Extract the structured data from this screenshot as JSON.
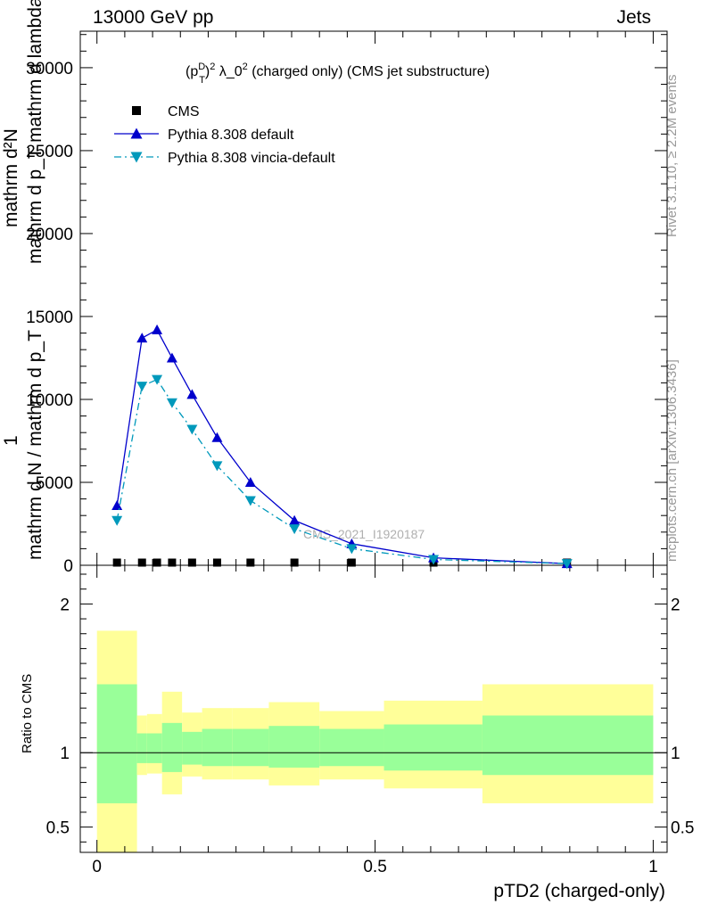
{
  "header": {
    "left": "13000 GeV pp",
    "right": "Jets"
  },
  "side_labels": {
    "rivet": "Rivet 3.1.10, ≥ 2.2M events",
    "site": "mcplots.cern.ch [arXiv:1306.3436]"
  },
  "y_axis_title": {
    "line1": "mathrm d²N",
    "line2": "mathrm d p_T mathrm d lambda",
    "frac_one": "1",
    "line3": "mathrm d N / mathrm d p_T"
  },
  "ratio_ylabel": "Ratio to CMS",
  "x_axis_title": "pTD2 (charged-only)",
  "watermark": "CMS_2021_I1920187",
  "chart_data": [
    {
      "type": "line",
      "title": "(p_T^D)^2 λ_0^2 (charged only) (CMS jet substructure)",
      "title_parts": {
        "pre": "(p",
        "sup1": "D",
        "sub1": "T",
        "mid": ")",
        "sup2": "2",
        "body": " λ_0",
        "sup3": "2",
        "tail": " (charged only) (CMS jet substructure)"
      },
      "xlim": [
        -0.03,
        1.025
      ],
      "ylim": [
        0,
        32200
      ],
      "y_ticks": [
        0,
        5000,
        10000,
        15000,
        20000,
        25000,
        30000
      ],
      "y_tick_labels": [
        "0",
        "5000",
        "10000",
        "15000",
        "20000",
        "25000",
        "30000"
      ],
      "legend_position": "top-left",
      "series": [
        {
          "name": "CMS",
          "marker": "square",
          "color": "#000000",
          "x": [
            0.036,
            0.081,
            0.108,
            0.135,
            0.171,
            0.216,
            0.276,
            0.355,
            0.458,
            0.605,
            0.845
          ],
          "y": [
            20,
            20,
            20,
            20,
            20,
            20,
            20,
            20,
            20,
            20,
            20
          ]
        },
        {
          "name": "Pythia 8.308 default",
          "marker": "triangle-up",
          "color": "#0000cc",
          "line": "solid",
          "x": [
            0.036,
            0.081,
            0.108,
            0.135,
            0.171,
            0.216,
            0.276,
            0.355,
            0.458,
            0.605,
            0.845
          ],
          "y": [
            3600,
            13700,
            14200,
            12500,
            10300,
            7700,
            5000,
            2700,
            1300,
            450,
            100
          ]
        },
        {
          "name": "Pythia 8.308 vincia-default",
          "marker": "triangle-down",
          "color": "#0099bb",
          "line": "dash-dot",
          "x": [
            0.036,
            0.081,
            0.108,
            0.135,
            0.171,
            0.216,
            0.276,
            0.355,
            0.458,
            0.605,
            0.845
          ],
          "y": [
            2700,
            10800,
            11200,
            9800,
            8200,
            6000,
            3900,
            2200,
            1000,
            350,
            100
          ]
        }
      ]
    },
    {
      "type": "area",
      "title": "",
      "ylabel": "Ratio to CMS",
      "xlabel": "pTD2 (charged-only)",
      "xlim": [
        -0.03,
        1.025
      ],
      "ylim": [
        0.33,
        2.26
      ],
      "x_ticks": [
        0,
        0.5,
        1
      ],
      "x_tick_labels": [
        "0",
        "0.5",
        "1"
      ],
      "y_ticks": [
        0.5,
        1,
        2
      ],
      "y_tick_labels": [
        "0.5",
        "1",
        "2"
      ],
      "reference_line": 1,
      "bin_edges": [
        0,
        0.072,
        0.09,
        0.117,
        0.153,
        0.189,
        0.243,
        0.309,
        0.4,
        0.516,
        0.693,
        1.0
      ],
      "band_outer": {
        "name": "total uncertainty",
        "color": "#ffff99",
        "low": [
          0.33,
          0.85,
          0.86,
          0.72,
          0.84,
          0.82,
          0.82,
          0.78,
          0.82,
          0.76,
          0.66
        ],
        "high": [
          1.82,
          1.25,
          1.26,
          1.41,
          1.27,
          1.3,
          1.3,
          1.34,
          1.28,
          1.35,
          1.46
        ]
      },
      "band_inner": {
        "name": "statistical uncertainty",
        "color": "#99ff99",
        "low": [
          0.66,
          0.93,
          0.93,
          0.87,
          0.92,
          0.91,
          0.91,
          0.9,
          0.91,
          0.88,
          0.85
        ],
        "high": [
          1.46,
          1.13,
          1.13,
          1.2,
          1.14,
          1.16,
          1.16,
          1.18,
          1.16,
          1.19,
          1.25
        ]
      }
    }
  ]
}
